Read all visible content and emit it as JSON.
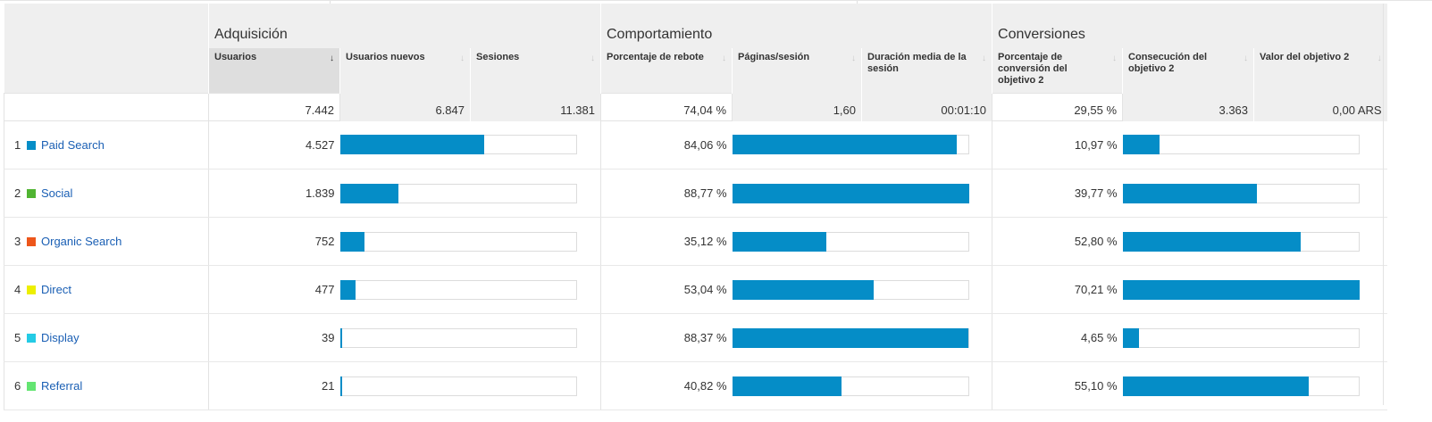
{
  "groups": {
    "adquisicion": "Adquisición",
    "comportamiento": "Comportamiento",
    "conversiones": "Conversiones"
  },
  "metrics": [
    {
      "label": "Usuarios",
      "sorted": true
    },
    {
      "label": "Usuarios nuevos",
      "sorted": false
    },
    {
      "label": "Sesiones",
      "sorted": false
    },
    {
      "label": "Porcentaje de rebote",
      "sorted": false
    },
    {
      "label": "Páginas/sesión",
      "sorted": false
    },
    {
      "label": "Duración media de la sesión",
      "sorted": false
    },
    {
      "label": "Porcentaje de conversión del objetivo 2",
      "sorted": false
    },
    {
      "label": "Consecución del objetivo 2",
      "sorted": false
    },
    {
      "label": "Valor del objetivo 2",
      "sorted": false
    }
  ],
  "sort_arrows": {
    "sorted": "↓",
    "unsorted": "↓"
  },
  "totals": {
    "usuarios": "7.442",
    "usuarios_nuevos": "6.847",
    "sesiones": "11.381",
    "rebote": "74,04 %",
    "paginas": "1,60",
    "duracion": "00:01:10",
    "conversion": "29,55 %",
    "consecucion": "3.363",
    "valor": "0,00 ARS"
  },
  "colors": {
    "bar": "#058dc7",
    "link": "#1a5fb4",
    "header_bg": "#efefef",
    "sorted_bg": "#dedede"
  },
  "rows": [
    {
      "index": "1",
      "channel": "Paid Search",
      "color": "#058dc7",
      "usuarios": "4.527",
      "usuarios_share": 0.6083,
      "rebote": "84,06 %",
      "rebote_share": 0.9469,
      "conversion": "10,97 %",
      "conversion_share": 0.1562
    },
    {
      "index": "2",
      "channel": "Social",
      "color": "#50b432",
      "usuarios": "1.839",
      "usuarios_share": 0.2471,
      "rebote": "88,77 %",
      "rebote_share": 1.0,
      "conversion": "39,77 %",
      "conversion_share": 0.5665
    },
    {
      "index": "3",
      "channel": "Organic Search",
      "color": "#ed561b",
      "usuarios": "752",
      "usuarios_share": 0.101,
      "rebote": "35,12 %",
      "rebote_share": 0.3956,
      "conversion": "52,80 %",
      "conversion_share": 0.752
    },
    {
      "index": "4",
      "channel": "Direct",
      "color": "#edef00",
      "usuarios": "477",
      "usuarios_share": 0.0641,
      "rebote": "53,04 %",
      "rebote_share": 0.5975,
      "conversion": "70,21 %",
      "conversion_share": 1.0
    },
    {
      "index": "5",
      "channel": "Display",
      "color": "#24cbe5",
      "usuarios": "39",
      "usuarios_share": 0.0052,
      "rebote": "88,37 %",
      "rebote_share": 0.9955,
      "conversion": "4,65 %",
      "conversion_share": 0.0662
    },
    {
      "index": "6",
      "channel": "Referral",
      "color": "#64e572",
      "usuarios": "21",
      "usuarios_share": 0.0028,
      "rebote": "40,82 %",
      "rebote_share": 0.4598,
      "conversion": "55,10 %",
      "conversion_share": 0.7848
    }
  ]
}
